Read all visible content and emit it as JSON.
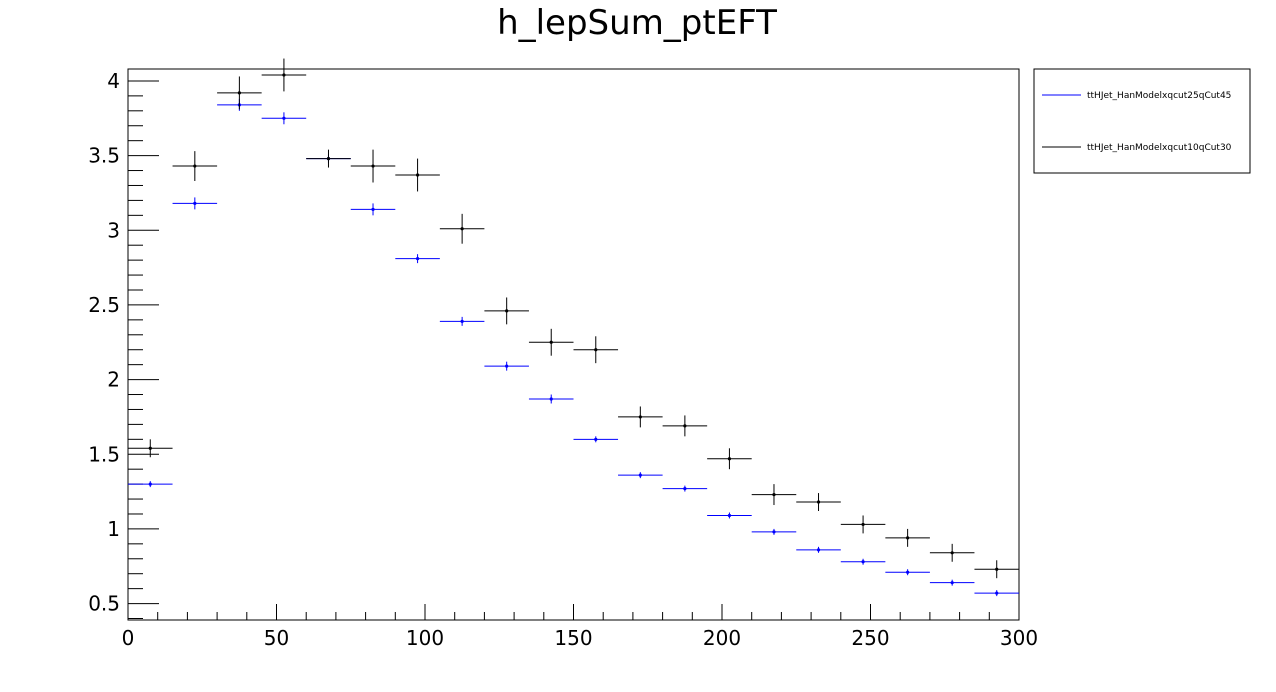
{
  "chart_data": {
    "type": "scatter",
    "title": "h_lepSum_ptEFT",
    "xlabel": "",
    "ylabel": "",
    "xlim": [
      0,
      300
    ],
    "ylim": [
      0.39,
      4.08
    ],
    "x_ticks": [
      0,
      50,
      100,
      150,
      200,
      250,
      300
    ],
    "y_ticks": [
      0.5,
      1,
      1.5,
      2,
      2.5,
      3,
      3.5,
      4
    ],
    "grid": false,
    "legend_position": "outside-right",
    "bin_width": 15,
    "x": [
      7.5,
      22.5,
      37.5,
      52.5,
      67.5,
      82.5,
      97.5,
      112.5,
      127.5,
      142.5,
      157.5,
      172.5,
      187.5,
      202.5,
      217.5,
      232.5,
      247.5,
      262.5,
      277.5,
      292.5
    ],
    "series": [
      {
        "name": "ttHJet_HanModelxqcut25qCut45",
        "color": "#0000ff",
        "values": [
          1.3,
          3.18,
          3.84,
          3.75,
          3.48,
          3.14,
          2.81,
          2.39,
          2.09,
          1.87,
          1.6,
          1.36,
          1.27,
          1.09,
          0.98,
          0.86,
          0.78,
          0.71,
          0.64,
          0.57
        ],
        "errors": [
          0.02,
          0.04,
          0.04,
          0.04,
          0.03,
          0.04,
          0.03,
          0.03,
          0.03,
          0.03,
          0.02,
          0.02,
          0.02,
          0.02,
          0.02,
          0.02,
          0.02,
          0.02,
          0.02,
          0.02
        ]
      },
      {
        "name": "ttHJet_HanModelxqcut10qCut30",
        "color": "#000000",
        "values": [
          1.54,
          3.43,
          3.92,
          4.04,
          3.48,
          3.43,
          3.37,
          3.01,
          2.46,
          2.25,
          2.2,
          1.75,
          1.69,
          1.47,
          1.23,
          1.18,
          1.03,
          0.94,
          0.84,
          0.73
        ],
        "errors": [
          0.06,
          0.1,
          0.11,
          0.11,
          0.06,
          0.11,
          0.11,
          0.1,
          0.09,
          0.09,
          0.09,
          0.07,
          0.07,
          0.07,
          0.07,
          0.06,
          0.06,
          0.06,
          0.06,
          0.06
        ]
      }
    ]
  }
}
